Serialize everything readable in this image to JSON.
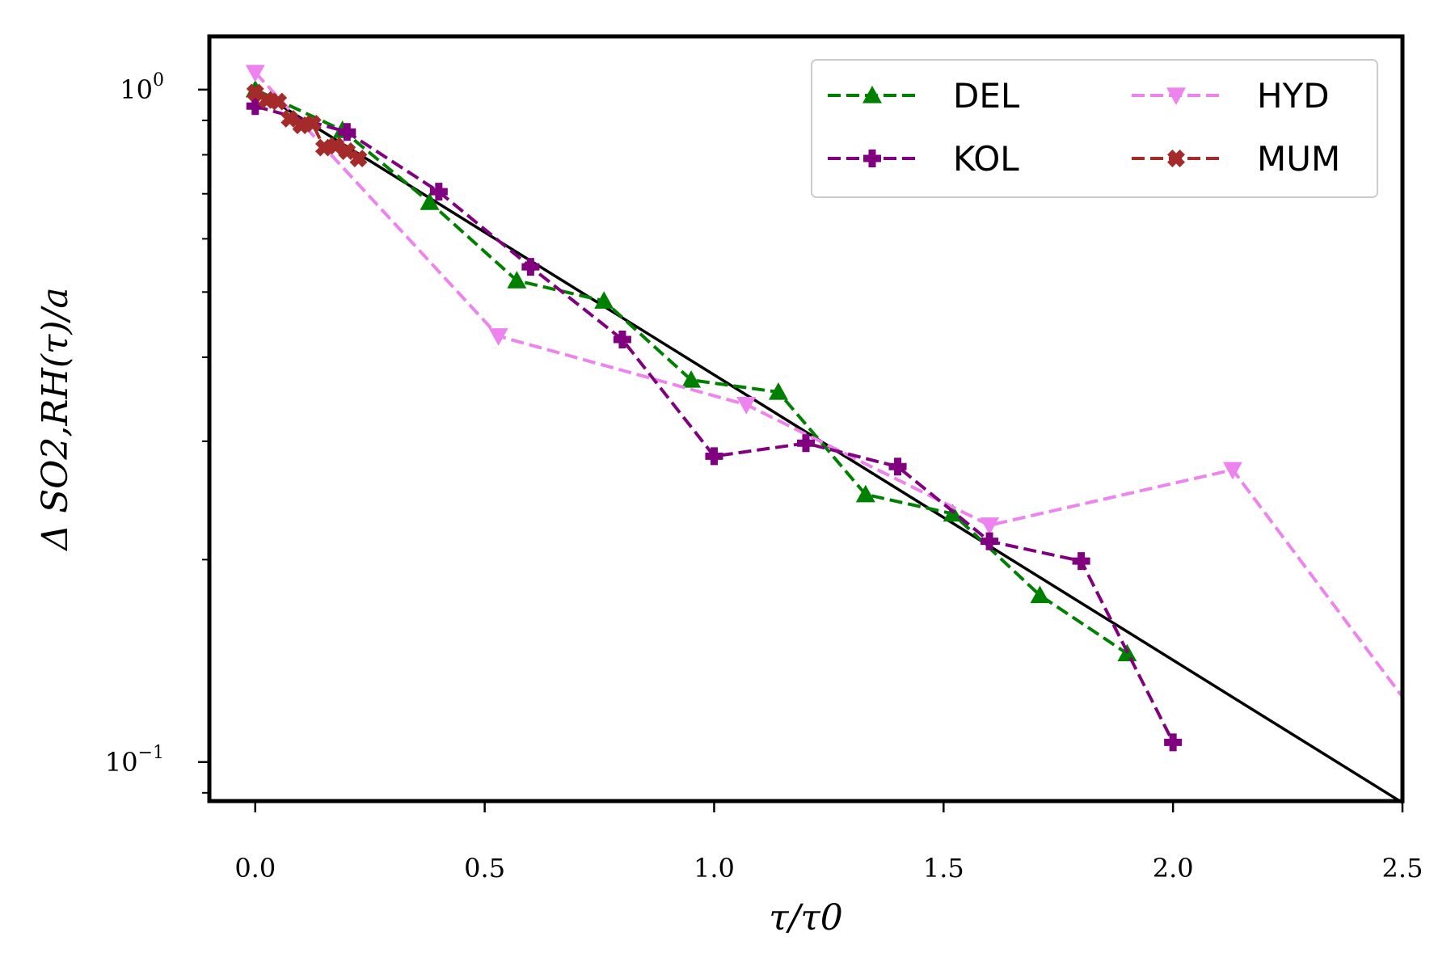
{
  "chart_data": {
    "type": "line",
    "title": "",
    "xlabel": "τ/τ0",
    "ylabel": "Δ SO2,RH(τ)/a",
    "xlim": [
      -0.1,
      2.5
    ],
    "ylim": [
      0.0875,
      1.2
    ],
    "yscale": "log",
    "x_ticks": [
      0.0,
      0.5,
      1.0,
      1.5,
      2.0,
      2.5
    ],
    "x_tick_labels": [
      "0.0",
      "0.5",
      "1.0",
      "1.5",
      "2.0",
      "2.5"
    ],
    "y_ticks": [
      {
        "value": 1.0,
        "base": "10",
        "exp": "0"
      },
      {
        "value": 0.1,
        "base": "10",
        "exp": "−1"
      }
    ],
    "grid": false,
    "legend_position": "top-right",
    "legend_columns": 2,
    "series": [
      {
        "name": "DEL",
        "color": "#008000",
        "marker": "triangle-up",
        "linestyle": "dashed",
        "x": [
          0.0,
          0.19,
          0.38,
          0.57,
          0.76,
          0.95,
          1.14,
          1.33,
          1.52,
          1.71,
          1.9
        ],
        "y": [
          1.0,
          0.87,
          0.68,
          0.52,
          0.485,
          0.37,
          0.355,
          0.25,
          0.234,
          0.177,
          0.145
        ]
      },
      {
        "name": "HYD",
        "color": "#ee82ee",
        "marker": "triangle-down",
        "linestyle": "dashed",
        "x": [
          0.0,
          0.53,
          1.07,
          1.6,
          2.13,
          2.5
        ],
        "y": [
          1.06,
          0.43,
          0.34,
          0.225,
          0.272,
          0.125
        ]
      },
      {
        "name": "KOL",
        "color": "#800080",
        "marker": "plus",
        "linestyle": "dashed",
        "x": [
          0.0,
          0.2,
          0.4,
          0.6,
          0.8,
          1.0,
          1.2,
          1.4,
          1.6,
          1.8,
          2.0
        ],
        "y": [
          0.945,
          0.865,
          0.705,
          0.545,
          0.425,
          0.285,
          0.298,
          0.275,
          0.213,
          0.199,
          0.107
        ]
      },
      {
        "name": "MUM",
        "color": "#a52a2a",
        "marker": "x",
        "linestyle": "dashed",
        "x": [
          0.0,
          0.025,
          0.05,
          0.075,
          0.1,
          0.125,
          0.15,
          0.175,
          0.2,
          0.225
        ],
        "y": [
          0.99,
          0.965,
          0.96,
          0.905,
          0.885,
          0.89,
          0.82,
          0.825,
          0.81,
          0.79
        ]
      }
    ],
    "fit_line": {
      "color": "#000000",
      "x": [
        0.0,
        2.5
      ],
      "y": [
        1.0,
        0.087
      ]
    }
  }
}
